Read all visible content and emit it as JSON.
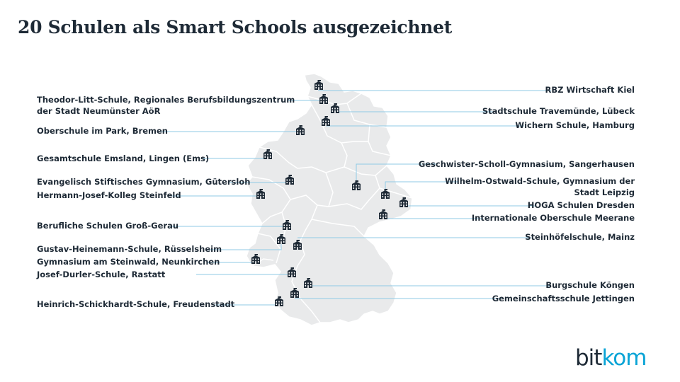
{
  "title": "20 Schulen als Smart Schools ausgezeichnet",
  "brand": {
    "part1": "bit",
    "part2": "kom",
    "color_dark": "#1e2a36",
    "color_accent": "#0aa4d6"
  },
  "colors": {
    "land": "#e9eaeb",
    "border": "#ffffff",
    "leader": "#8fc9e6",
    "icon": "#1e2a36",
    "text": "#1e2a36"
  },
  "schools_left": [
    {
      "name": "Theodor-Litt-Schule, Regionales Berufsbildungszentrum der Stadt Neumünster AöR",
      "line1": "Theodor-Litt-Schule, Regionales Berufsbildungszentrum",
      "line2": "der Stadt Neumünster AöR"
    },
    {
      "name": "Oberschule im Park, Bremen"
    },
    {
      "name": "Gesamtschule Emsland, Lingen (Ems)"
    },
    {
      "name": "Evangelisch Stiftisches Gymnasium, Gütersloh"
    },
    {
      "name": "Hermann-Josef-Kolleg Steinfeld"
    },
    {
      "name": "Berufliche Schulen Groß-Gerau"
    },
    {
      "name": "Gustav-Heinemann-Schule, Rüsselsheim"
    },
    {
      "name": "Gymnasium am Steinwald, Neunkirchen"
    },
    {
      "name": "Josef-Durler-Schule, Rastatt"
    },
    {
      "name": "Heinrich-Schickhardt-Schule, Freudenstadt"
    }
  ],
  "schools_right": [
    {
      "name": "RBZ Wirtschaft Kiel"
    },
    {
      "name": "Stadtschule Travemünde, Lübeck"
    },
    {
      "name": "Wichern Schule, Hamburg"
    },
    {
      "name": "Geschwister-Scholl-Gymnasium, Sangerhausen"
    },
    {
      "name": "Wilhelm-Ostwald-Schule, Gymnasium der Stadt Leipzig",
      "line1": "Wilhelm-Ostwald-Schule, Gymnasium der",
      "line2": "Stadt Leipzig"
    },
    {
      "name": "HOGA Schulen Dresden"
    },
    {
      "name": "Internationale Oberschule Meerane"
    },
    {
      "name": "Steinhöfelschule, Mainz"
    },
    {
      "name": "Burgschule Köngen"
    },
    {
      "name": "Gemeinschaftsschule Jettingen"
    }
  ]
}
